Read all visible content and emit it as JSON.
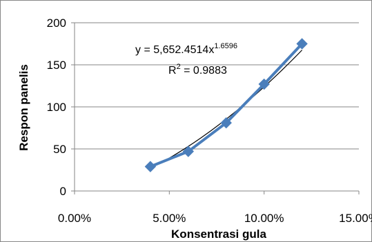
{
  "chart_data": {
    "type": "scatter",
    "xlabel": "Konsentrasi gula",
    "ylabel": "Respon panelis",
    "xlim": [
      0.0,
      0.15
    ],
    "ylim": [
      0,
      200
    ],
    "x_ticks": [
      "0.00%",
      "5.00%",
      "10.00%",
      "15.00%"
    ],
    "x_tick_values": [
      0.0,
      0.05,
      0.1,
      0.15
    ],
    "y_ticks": [
      "0",
      "50",
      "100",
      "150",
      "200"
    ],
    "y_tick_values": [
      0,
      50,
      100,
      150,
      200
    ],
    "grid": "horizontal",
    "series": [
      {
        "x": [
          0.04,
          0.06,
          0.08,
          0.1,
          0.12
        ],
        "y": [
          29,
          47,
          81,
          127,
          175
        ],
        "color": "#4a7ebb",
        "marker": "diamond"
      }
    ],
    "trendline": {
      "type": "power",
      "coefficient": 5652.4514,
      "exponent": 1.6596,
      "color": "#000000",
      "equation": {
        "prefix": "y = 5,652.4514x",
        "exponent": "1.6596"
      },
      "r_squared": {
        "prefix": "R",
        "sup": "2",
        "value": " = 0.9883"
      }
    }
  }
}
